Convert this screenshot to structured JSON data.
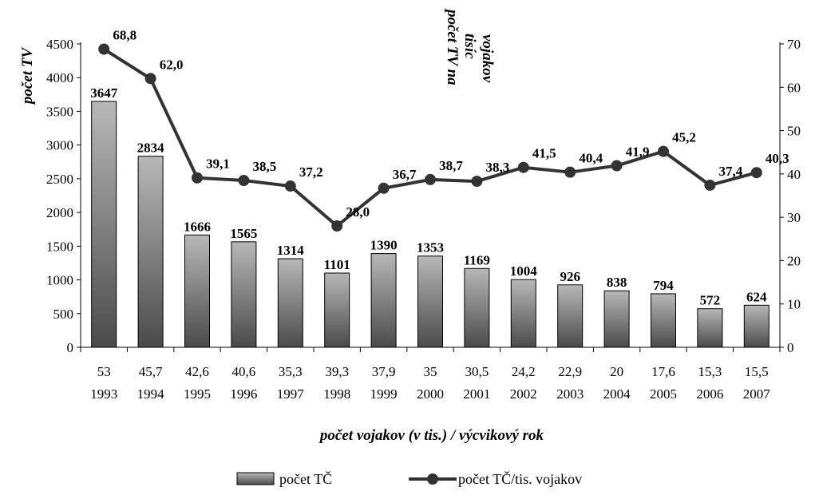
{
  "chart_data": {
    "type": "bar",
    "categories": [
      "1993",
      "1994",
      "1995",
      "1996",
      "1997",
      "1998",
      "1999",
      "2000",
      "2001",
      "2002",
      "2003",
      "2004",
      "2005",
      "2006",
      "2007"
    ],
    "x_labels_top": [
      "53",
      "45,7",
      "42,6",
      "40,6",
      "35,3",
      "39,3",
      "37,9",
      "35",
      "30,5",
      "24,2",
      "22,9",
      "20",
      "17,6",
      "15,3",
      "15,5"
    ],
    "series": [
      {
        "name": "počet TČ",
        "type": "bar",
        "axis": "left",
        "values": [
          3647,
          2834,
          1666,
          1565,
          1314,
          1101,
          1390,
          1353,
          1169,
          1004,
          926,
          838,
          794,
          572,
          624
        ],
        "labels": [
          "3647",
          "2834",
          "1666",
          "1565",
          "1314",
          "1101",
          "1390",
          "1353",
          "1169",
          "1004",
          "926",
          "838",
          "794",
          "572",
          "624"
        ]
      },
      {
        "name": "počet TČ/tis. vojakov",
        "type": "line",
        "axis": "right",
        "values": [
          68.8,
          62.0,
          39.1,
          38.5,
          37.2,
          28.0,
          36.7,
          38.7,
          38.3,
          41.5,
          40.4,
          41.9,
          45.2,
          37.4,
          40.3
        ],
        "labels": [
          "68,8",
          "62,0",
          "39,1",
          "38,5",
          "37,2",
          "28,0",
          "36,7",
          "38,7",
          "38,3",
          "41,5",
          "40,4",
          "41,9",
          "45,2",
          "37,4",
          "40,3"
        ]
      }
    ],
    "y_left": {
      "label": "počet TV",
      "ylim": [
        0,
        4500
      ],
      "ticks": [
        "0",
        "500",
        "1000",
        "1500",
        "2000",
        "2500",
        "3000",
        "3500",
        "4000",
        "4500"
      ]
    },
    "y_right": {
      "label_lines": [
        "počet TV na",
        "tisíc",
        "vojakov"
      ],
      "ylim": [
        0,
        70
      ],
      "ticks": [
        "0",
        "10",
        "20",
        "30",
        "40",
        "50",
        "60",
        "70"
      ]
    },
    "xlabel": "počet vojakov (v tis.) / výcvikový rok",
    "legend": {
      "position": "bottom",
      "items": [
        "počet TČ",
        "počet TČ/tis. vojakov"
      ]
    },
    "colors": {
      "bar_light": "#b8b8b8",
      "bar_dark": "#4a4a4a",
      "line": "#333333"
    },
    "grid": false
  }
}
